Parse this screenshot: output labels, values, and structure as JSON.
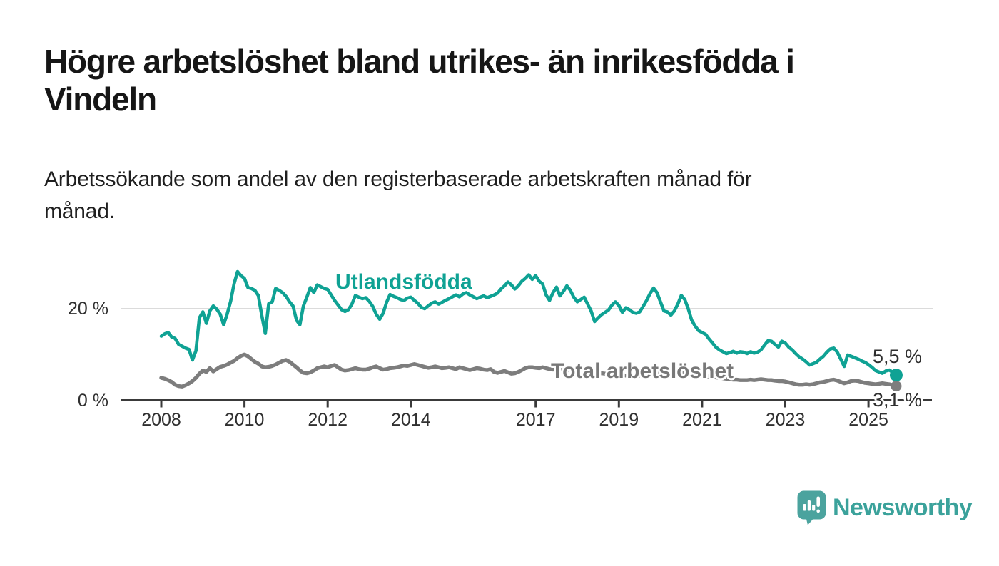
{
  "header": {
    "title_lines": [
      "Högre arbetslöshet bland utrikes- än inrikesfödda i",
      "Vindeln"
    ],
    "subtitle_lines": [
      "Arbetssökande som andel av den registerbaserade arbetskraften månad för",
      "månad."
    ]
  },
  "branding": {
    "logo_text": "Newsworthy",
    "logo_icon": "bar-chart-speech-bubble-icon",
    "brand_color": "#3BA29B"
  },
  "colors": {
    "series_foreign": "#0FA294",
    "series_total": "#7D7D7D",
    "axis": "#3A3A3A",
    "grid": "#DBDBDB",
    "text": "#1F1F1F"
  },
  "chart_data": {
    "type": "line",
    "x_start": 2008.0,
    "x_step": 0.08333,
    "xlim": [
      2007.9,
      2026.3
    ],
    "ylim": [
      0,
      30
    ],
    "grid": "horizontal-at-20-only",
    "x_ticks": [
      {
        "year": 2008,
        "label": "2008"
      },
      {
        "year": 2010,
        "label": "2010"
      },
      {
        "year": 2012,
        "label": "2012"
      },
      {
        "year": 2014,
        "label": "2014"
      },
      {
        "year": 2017,
        "label": "2017"
      },
      {
        "year": 2019,
        "label": "2019"
      },
      {
        "year": 2021,
        "label": "2021"
      },
      {
        "year": 2023,
        "label": "2023"
      },
      {
        "year": 2025,
        "label": "2025"
      }
    ],
    "y_ticks": [
      {
        "value": 0,
        "label": "0 %"
      },
      {
        "value": 20,
        "label": "20 %"
      }
    ],
    "series": [
      {
        "name": "Utlandsfödda",
        "color": "#0FA294",
        "end_label": "5,5 %",
        "end_value": 5.5,
        "values": [
          14.0,
          14.5,
          14.8,
          13.8,
          13.5,
          12.2,
          11.8,
          11.4,
          11.1,
          8.8,
          10.8,
          18.0,
          19.3,
          16.8,
          19.5,
          20.6,
          19.9,
          18.8,
          16.5,
          18.8,
          21.6,
          25.4,
          28.1,
          27.2,
          26.6,
          24.6,
          24.4,
          24.0,
          22.9,
          18.5,
          14.6,
          21.1,
          21.5,
          24.4,
          24.0,
          23.5,
          22.7,
          21.5,
          20.6,
          17.5,
          16.5,
          20.6,
          22.5,
          24.6,
          23.5,
          25.2,
          24.8,
          24.4,
          24.2,
          23.0,
          21.8,
          20.8,
          19.8,
          19.4,
          19.8,
          21.0,
          22.9,
          22.5,
          22.2,
          22.4,
          21.6,
          20.5,
          18.8,
          17.7,
          19.0,
          21.4,
          23.1,
          22.7,
          22.4,
          22.0,
          21.8,
          22.3,
          22.5,
          21.8,
          21.2,
          20.3,
          20.0,
          20.6,
          21.2,
          21.5,
          21.0,
          21.4,
          21.8,
          22.2,
          22.6,
          23.0,
          22.6,
          23.2,
          23.5,
          23.0,
          22.6,
          22.2,
          22.5,
          22.8,
          22.4,
          22.7,
          23.0,
          23.4,
          24.3,
          25.0,
          25.8,
          25.2,
          24.3,
          25.0,
          26.0,
          26.6,
          27.4,
          26.4,
          27.2,
          26.0,
          25.4,
          23.0,
          21.8,
          23.5,
          24.7,
          22.8,
          23.8,
          25.0,
          24.0,
          22.5,
          21.5,
          22.0,
          22.5,
          21.0,
          19.5,
          17.2,
          18.0,
          18.7,
          19.2,
          19.7,
          20.8,
          21.5,
          20.7,
          19.2,
          20.2,
          19.8,
          19.2,
          19.0,
          19.3,
          20.5,
          21.8,
          23.3,
          24.5,
          23.5,
          21.5,
          19.5,
          19.3,
          18.6,
          19.5,
          21.0,
          22.9,
          22.0,
          20.0,
          17.5,
          16.2,
          15.2,
          14.8,
          14.4,
          13.4,
          12.5,
          11.6,
          11.0,
          10.6,
          10.2,
          10.4,
          10.7,
          10.3,
          10.6,
          10.5,
          10.2,
          10.6,
          10.3,
          10.5,
          11.0,
          12.0,
          13.0,
          12.9,
          12.2,
          11.6,
          12.9,
          12.5,
          11.6,
          11.0,
          10.2,
          9.5,
          9.0,
          8.4,
          7.7,
          8.0,
          8.3,
          9.0,
          9.6,
          10.5,
          11.2,
          11.4,
          10.5,
          9.0,
          7.4,
          9.9,
          9.6,
          9.3,
          9.0,
          8.6,
          8.3,
          7.8,
          7.2,
          6.5,
          6.2,
          5.9,
          6.4,
          6.6,
          6.1,
          5.5
        ]
      },
      {
        "name": "Total arbetslöshet",
        "color": "#7D7D7D",
        "end_label": "3,1 %",
        "end_value": 3.1,
        "values": [
          4.9,
          4.7,
          4.4,
          4.0,
          3.4,
          3.1,
          3.0,
          3.3,
          3.7,
          4.2,
          4.9,
          5.8,
          6.5,
          6.2,
          7.0,
          6.3,
          6.8,
          7.3,
          7.5,
          7.8,
          8.2,
          8.6,
          9.2,
          9.7,
          10.0,
          9.6,
          9.0,
          8.4,
          8.0,
          7.4,
          7.2,
          7.3,
          7.5,
          7.8,
          8.2,
          8.6,
          8.8,
          8.4,
          7.8,
          7.2,
          6.5,
          6.0,
          5.9,
          6.1,
          6.5,
          7.0,
          7.2,
          7.4,
          7.2,
          7.5,
          7.7,
          7.2,
          6.7,
          6.5,
          6.6,
          6.8,
          7.0,
          6.8,
          6.7,
          6.7,
          6.9,
          7.2,
          7.4,
          7.0,
          6.7,
          6.8,
          7.0,
          7.1,
          7.2,
          7.4,
          7.6,
          7.5,
          7.7,
          7.9,
          7.7,
          7.5,
          7.3,
          7.1,
          7.2,
          7.4,
          7.2,
          7.0,
          7.1,
          7.2,
          7.0,
          6.8,
          7.2,
          7.0,
          6.8,
          6.6,
          6.8,
          7.0,
          6.9,
          6.7,
          6.6,
          6.8,
          6.2,
          6.0,
          6.2,
          6.4,
          6.1,
          5.8,
          5.9,
          6.2,
          6.6,
          7.0,
          7.2,
          7.2,
          7.1,
          7.0,
          7.2,
          7.0,
          6.8,
          6.7,
          6.8,
          6.9,
          6.8,
          6.6,
          6.5,
          6.4,
          6.3,
          6.2,
          6.1,
          6.0,
          5.9,
          5.8,
          5.8,
          5.9,
          5.8,
          5.7,
          5.6,
          5.6,
          5.5,
          5.5,
          5.4,
          5.4,
          5.3,
          5.3,
          5.4,
          5.5,
          5.5,
          5.6,
          5.7,
          5.8,
          5.9,
          6.0,
          6.2,
          6.3,
          6.2,
          6.1,
          6.0,
          5.9,
          5.8,
          5.7,
          5.6,
          5.5,
          5.4,
          5.3,
          5.2,
          5.1,
          5.0,
          4.9,
          4.8,
          4.7,
          4.6,
          4.5,
          4.5,
          4.4,
          4.4,
          4.4,
          4.5,
          4.4,
          4.5,
          4.6,
          4.5,
          4.4,
          4.4,
          4.3,
          4.2,
          4.2,
          4.1,
          3.9,
          3.7,
          3.5,
          3.4,
          3.4,
          3.5,
          3.4,
          3.5,
          3.7,
          3.9,
          4.0,
          4.2,
          4.4,
          4.5,
          4.3,
          4.0,
          3.7,
          3.9,
          4.2,
          4.3,
          4.2,
          4.0,
          3.8,
          3.7,
          3.6,
          3.5,
          3.6,
          3.7,
          3.6,
          3.5,
          3.3,
          3.1
        ]
      }
    ]
  }
}
